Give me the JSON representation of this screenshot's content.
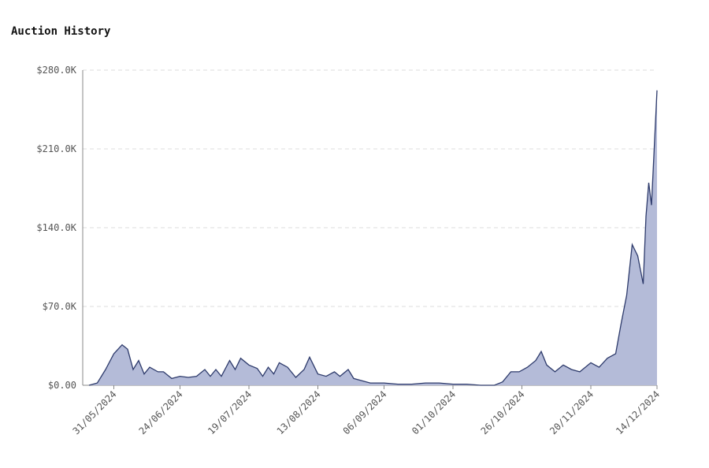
{
  "chart_data": {
    "type": "area",
    "title": "Auction History",
    "x": [
      "22/05/2024",
      "25/05/2024",
      "28/05/2024",
      "31/05/2024",
      "03/06/2024",
      "05/06/2024",
      "07/06/2024",
      "09/06/2024",
      "11/06/2024",
      "13/06/2024",
      "16/06/2024",
      "18/06/2024",
      "21/06/2024",
      "24/06/2024",
      "27/06/2024",
      "30/06/2024",
      "03/07/2024",
      "05/07/2024",
      "07/07/2024",
      "09/07/2024",
      "12/07/2024",
      "14/07/2024",
      "16/07/2024",
      "19/07/2024",
      "22/07/2024",
      "24/07/2024",
      "26/07/2024",
      "28/07/2024",
      "30/07/2024",
      "02/08/2024",
      "05/08/2024",
      "08/08/2024",
      "10/08/2024",
      "13/08/2024",
      "16/08/2024",
      "19/08/2024",
      "21/08/2024",
      "24/08/2024",
      "26/08/2024",
      "29/08/2024",
      "01/09/2024",
      "06/09/2024",
      "11/09/2024",
      "16/09/2024",
      "21/09/2024",
      "26/09/2024",
      "01/10/2024",
      "06/10/2024",
      "11/10/2024",
      "16/10/2024",
      "19/10/2024",
      "22/10/2024",
      "25/10/2024",
      "28/10/2024",
      "31/10/2024",
      "02/11/2024",
      "04/11/2024",
      "07/11/2024",
      "10/11/2024",
      "13/11/2024",
      "16/11/2024",
      "20/11/2024",
      "23/11/2024",
      "26/11/2024",
      "29/11/2024",
      "01/12/2024",
      "03/12/2024",
      "05/12/2024",
      "07/12/2024",
      "09/12/2024",
      "10/12/2024",
      "11/12/2024",
      "12/12/2024",
      "14/12/2024"
    ],
    "series": [
      {
        "color": "#2d3a6b",
        "values": [
          0,
          2000,
          14000,
          28000,
          36000,
          32000,
          14000,
          22000,
          10000,
          16000,
          12000,
          12000,
          6000,
          8000,
          7000,
          8000,
          14000,
          8000,
          14000,
          8000,
          22000,
          14000,
          24000,
          18000,
          15000,
          8000,
          16000,
          10000,
          20000,
          16000,
          7000,
          14000,
          25000,
          10000,
          8000,
          12000,
          8000,
          14000,
          6000,
          4000,
          2000,
          2000,
          1000,
          1000,
          2000,
          2000,
          1000,
          1000,
          0,
          0,
          3000,
          12000,
          12000,
          16000,
          22000,
          30000,
          18000,
          12000,
          18000,
          14000,
          12000,
          20000,
          16000,
          24000,
          28000,
          55000,
          80000,
          125000,
          115000,
          90000,
          150000,
          180000,
          160000,
          262000
        ]
      }
    ],
    "xlim": [
      "22/05/2024",
      "14/12/2024"
    ],
    "xticks": [
      "31/05/2024",
      "24/06/2024",
      "19/07/2024",
      "13/08/2024",
      "06/09/2024",
      "01/10/2024",
      "26/10/2024",
      "20/11/2024",
      "14/12/2024"
    ],
    "ylim": [
      0,
      280000
    ],
    "yticks": [
      {
        "value": 0,
        "label": "$0.00"
      },
      {
        "value": 70000,
        "label": "$70.0K"
      },
      {
        "value": 140000,
        "label": "$140.0K"
      },
      {
        "value": 210000,
        "label": "$210.0K"
      },
      {
        "value": 280000,
        "label": "$280.0K"
      }
    ],
    "grid": true
  }
}
